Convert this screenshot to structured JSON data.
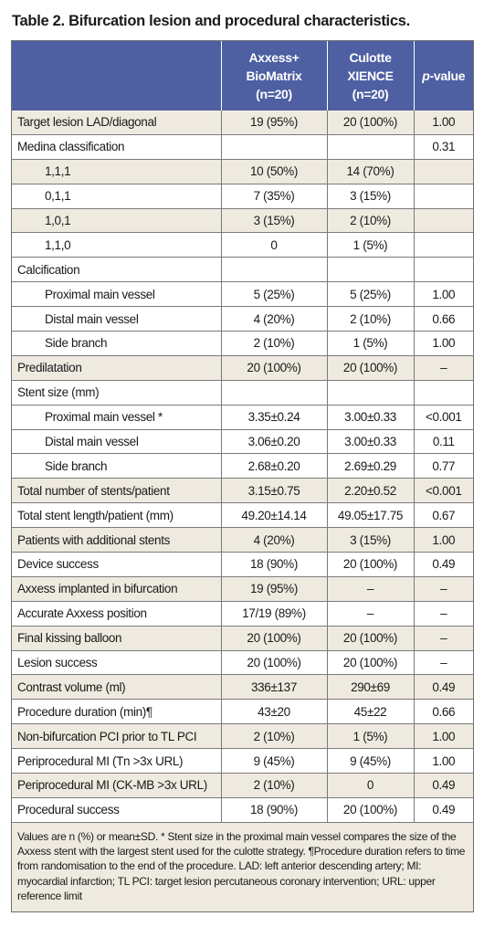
{
  "title": "Table 2. Bifurcation lesion and procedural characteristics.",
  "header": {
    "col1": "",
    "col2": [
      "Axxess+",
      "BioMatrix",
      "(n=20)"
    ],
    "col3": [
      "Culotte",
      "XIENCE",
      "(n=20)"
    ],
    "col4_italic": "p",
    "col4_rest": "-value"
  },
  "rows": [
    {
      "label": "Target lesion LAD/diagonal",
      "a": "19 (95%)",
      "b": "20 (100%)",
      "p": "1.00",
      "indent": false,
      "shade": true
    },
    {
      "label": "Medina classification",
      "a": "",
      "b": "",
      "p": "0.31",
      "indent": false,
      "shade": false
    },
    {
      "label": "1,1,1",
      "a": "10 (50%)",
      "b": "14 (70%)",
      "p": "",
      "indent": true,
      "shade": true
    },
    {
      "label": "0,1,1",
      "a": "7 (35%)",
      "b": "3 (15%)",
      "p": "",
      "indent": true,
      "shade": false
    },
    {
      "label": "1,0,1",
      "a": "3 (15%)",
      "b": "2 (10%)",
      "p": "",
      "indent": true,
      "shade": true
    },
    {
      "label": "1,1,0",
      "a": "0",
      "b": "1 (5%)",
      "p": "",
      "indent": true,
      "shade": false
    },
    {
      "label": "Calcification",
      "a": "",
      "b": "",
      "p": "",
      "indent": false,
      "shade": false
    },
    {
      "label": "Proximal main vessel",
      "a": "5 (25%)",
      "b": "5 (25%)",
      "p": "1.00",
      "indent": true,
      "shade": false
    },
    {
      "label": "Distal main vessel",
      "a": "4 (20%)",
      "b": "2 (10%)",
      "p": "0.66",
      "indent": true,
      "shade": false
    },
    {
      "label": "Side branch",
      "a": "2 (10%)",
      "b": "1 (5%)",
      "p": "1.00",
      "indent": true,
      "shade": false
    },
    {
      "label": "Predilatation",
      "a": "20 (100%)",
      "b": "20 (100%)",
      "p": "–",
      "indent": false,
      "shade": true
    },
    {
      "label": "Stent size (mm)",
      "a": "",
      "b": "",
      "p": "",
      "indent": false,
      "shade": false
    },
    {
      "label": "Proximal main vessel *",
      "a": "3.35±0.24",
      "b": "3.00±0.33",
      "p": "<0.001",
      "indent": true,
      "shade": false
    },
    {
      "label": "Distal main vessel",
      "a": "3.06±0.20",
      "b": "3.00±0.33",
      "p": "0.11",
      "indent": true,
      "shade": false
    },
    {
      "label": "Side branch",
      "a": "2.68±0.20",
      "b": "2.69±0.29",
      "p": "0.77",
      "indent": true,
      "shade": false
    },
    {
      "label": "Total number of stents/patient",
      "a": "3.15±0.75",
      "b": "2.20±0.52",
      "p": "<0.001",
      "indent": false,
      "shade": true
    },
    {
      "label": "Total stent length/patient (mm)",
      "a": "49.20±14.14",
      "b": "49.05±17.75",
      "p": "0.67",
      "indent": false,
      "shade": false
    },
    {
      "label": "Patients with additional stents",
      "a": "4 (20%)",
      "b": "3 (15%)",
      "p": "1.00",
      "indent": false,
      "shade": true
    },
    {
      "label": "Device success",
      "a": "18 (90%)",
      "b": "20 (100%)",
      "p": "0.49",
      "indent": false,
      "shade": false
    },
    {
      "label": "Axxess implanted in bifurcation",
      "a": "19 (95%)",
      "b": "–",
      "p": "–",
      "indent": false,
      "shade": true
    },
    {
      "label": "Accurate Axxess position",
      "a": "17/19 (89%)",
      "b": "–",
      "p": "–",
      "indent": false,
      "shade": false
    },
    {
      "label": "Final kissing balloon",
      "a": "20 (100%)",
      "b": "20 (100%)",
      "p": "–",
      "indent": false,
      "shade": true
    },
    {
      "label": "Lesion success",
      "a": "20 (100%)",
      "b": "20 (100%)",
      "p": "–",
      "indent": false,
      "shade": false
    },
    {
      "label": "Contrast volume (ml)",
      "a": "336±137",
      "b": "290±69",
      "p": "0.49",
      "indent": false,
      "shade": true
    },
    {
      "label": "Procedure duration (min)¶",
      "a": "43±20",
      "b": "45±22",
      "p": "0.66",
      "indent": false,
      "shade": false
    },
    {
      "label": "Non-bifurcation PCI prior to TL PCI",
      "a": "2 (10%)",
      "b": "1 (5%)",
      "p": "1.00",
      "indent": false,
      "shade": true
    },
    {
      "label": "Periprocedural MI (Tn >3x URL)",
      "a": "9 (45%)",
      "b": "9 (45%)",
      "p": "1.00",
      "indent": false,
      "shade": false
    },
    {
      "label": "Periprocedural MI (CK-MB >3x URL)",
      "a": "2 (10%)",
      "b": "0",
      "p": "0.49",
      "indent": false,
      "shade": true
    },
    {
      "label": "Procedural success",
      "a": "18 (90%)",
      "b": "20 (100%)",
      "p": "0.49",
      "indent": false,
      "shade": false
    }
  ],
  "footnote": "Values are n (%) or mean±SD. * Stent size in the proximal main vessel compares the size of the Axxess stent with the largest stent used for the culotte strategy. ¶Procedure duration refers to time from randomisation to the end of the procedure. LAD: left anterior descending artery; MI: myocardial infarction; TL PCI: target lesion percutaneous coronary intervention; URL: upper reference limit"
}
